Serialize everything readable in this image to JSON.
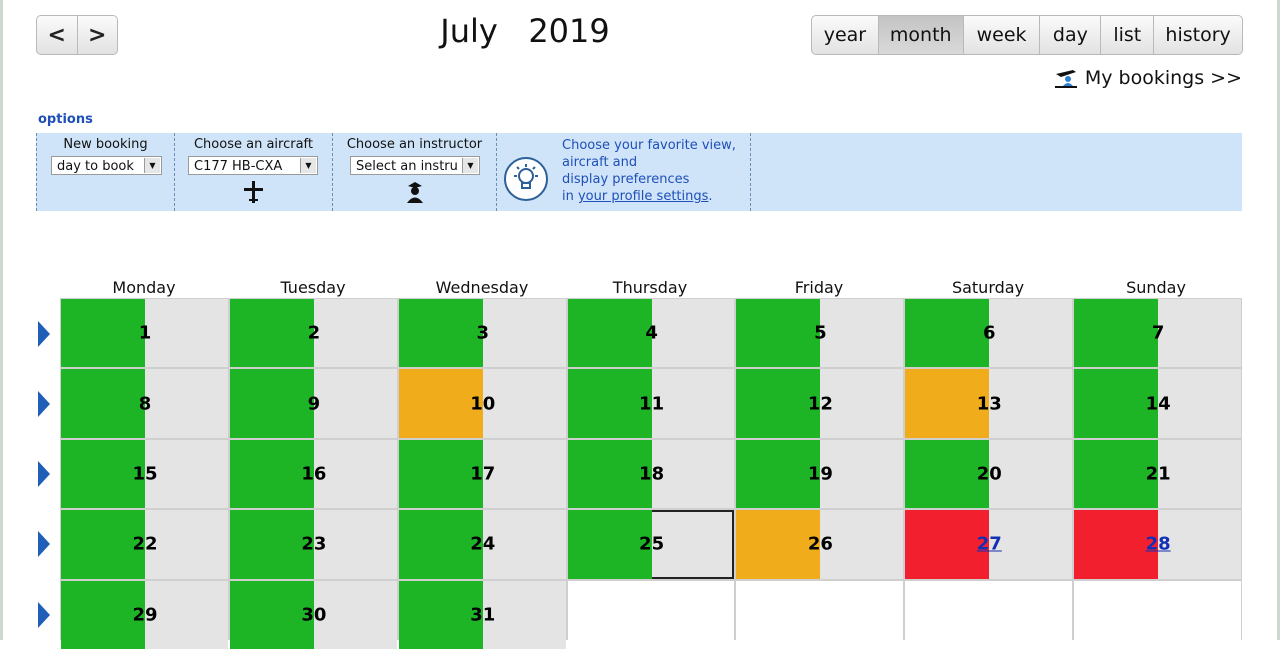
{
  "nav": {
    "prev": "<",
    "next": ">"
  },
  "header": {
    "month": "July",
    "year": "2019"
  },
  "views": [
    {
      "label": "year",
      "active": false
    },
    {
      "label": "month",
      "active": true
    },
    {
      "label": "week",
      "active": false
    },
    {
      "label": "day",
      "active": false
    },
    {
      "label": "list",
      "active": false
    },
    {
      "label": "history",
      "active": false
    }
  ],
  "my_bookings": "My bookings >>",
  "options": {
    "link": "options",
    "new_booking": {
      "label": "New booking",
      "value": "day to book"
    },
    "aircraft": {
      "label": "Choose an aircraft",
      "value": "C177 HB-CXA"
    },
    "instructor": {
      "label": "Choose an instructor",
      "value": "Select an instru"
    },
    "tip": {
      "line1": "Choose your favorite view,",
      "line2": "aircraft and",
      "line3": "display preferences",
      "line4_prefix": "in ",
      "line4_link": "your profile settings",
      "line4_suffix": "."
    }
  },
  "weekdays": [
    "Monday",
    "Tuesday",
    "Wednesday",
    "Thursday",
    "Friday",
    "Saturday",
    "Sunday"
  ],
  "weeks": [
    [
      {
        "day": "1",
        "status": "green"
      },
      {
        "day": "2",
        "status": "green"
      },
      {
        "day": "3",
        "status": "green"
      },
      {
        "day": "4",
        "status": "green"
      },
      {
        "day": "5",
        "status": "green"
      },
      {
        "day": "6",
        "status": "green"
      },
      {
        "day": "7",
        "status": "green"
      }
    ],
    [
      {
        "day": "8",
        "status": "green"
      },
      {
        "day": "9",
        "status": "green"
      },
      {
        "day": "10",
        "status": "orange"
      },
      {
        "day": "11",
        "status": "green"
      },
      {
        "day": "12",
        "status": "green"
      },
      {
        "day": "13",
        "status": "orange"
      },
      {
        "day": "14",
        "status": "green"
      }
    ],
    [
      {
        "day": "15",
        "status": "green"
      },
      {
        "day": "16",
        "status": "green"
      },
      {
        "day": "17",
        "status": "green"
      },
      {
        "day": "18",
        "status": "green"
      },
      {
        "day": "19",
        "status": "green"
      },
      {
        "day": "20",
        "status": "green"
      },
      {
        "day": "21",
        "status": "green"
      }
    ],
    [
      {
        "day": "22",
        "status": "green"
      },
      {
        "day": "23",
        "status": "green"
      },
      {
        "day": "24",
        "status": "green"
      },
      {
        "day": "25",
        "status": "green",
        "today": true
      },
      {
        "day": "26",
        "status": "orange"
      },
      {
        "day": "27",
        "status": "red"
      },
      {
        "day": "28",
        "status": "red"
      }
    ],
    [
      {
        "day": "29",
        "status": "green"
      },
      {
        "day": "30",
        "status": "green"
      },
      {
        "day": "31",
        "status": "green"
      },
      {
        "day": "",
        "status": "empty"
      },
      {
        "day": "",
        "status": "empty"
      },
      {
        "day": "",
        "status": "empty"
      },
      {
        "day": "",
        "status": "empty"
      }
    ]
  ],
  "colors": {
    "available": "#1db526",
    "partial": "#f0ac1b",
    "booked": "#f2202e",
    "link": "#1f4fb8",
    "week_arrow": "#1f5fb8"
  }
}
